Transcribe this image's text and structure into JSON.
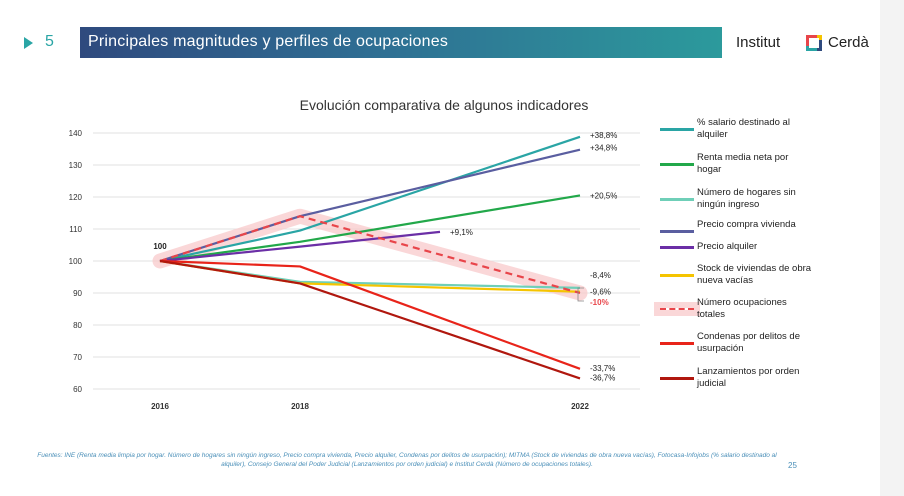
{
  "header": {
    "slide_number": "5",
    "title": "Principales magnitudes y perfiles de ocupaciones",
    "logo_text_left": "Institut",
    "logo_text_right": "Cerdà",
    "colors": {
      "band_start": "#2f4a7e",
      "band_end": "#2c9a9c",
      "accent": "#2aa5a5"
    }
  },
  "chart_data": {
    "type": "line",
    "title": "Evolución comparativa de algunos indicadores",
    "x": [
      2016,
      2018,
      2022
    ],
    "x_tick_labels": [
      "2016",
      "2018",
      "2022"
    ],
    "ylim": [
      60,
      140
    ],
    "y_ticks": [
      60,
      70,
      80,
      90,
      100,
      110,
      120,
      130,
      140
    ],
    "grid": true,
    "legend_position": "right",
    "start_label": "100",
    "series": [
      {
        "name": "% salario destinado al alquiler",
        "color": "#2aa5a5",
        "points": [
          [
            2016,
            100
          ],
          [
            2018,
            109.5
          ],
          [
            2022,
            138.8
          ]
        ],
        "end_label": "+38,8%"
      },
      {
        "name": "Renta media neta por hogar",
        "color": "#22a84a",
        "points": [
          [
            2016,
            100
          ],
          [
            2018,
            106
          ],
          [
            2022,
            120.5
          ]
        ],
        "end_label": "+20,5%"
      },
      {
        "name": "Número de hogares sin ningún ingreso",
        "color": "#6fcfb8",
        "points": [
          [
            2016,
            100
          ],
          [
            2018,
            93.5
          ],
          [
            2022,
            91.6
          ]
        ],
        "end_label": "-8,4%"
      },
      {
        "name": "Precio compra vivienda",
        "color": "#5a5ea0",
        "points": [
          [
            2016,
            100
          ],
          [
            2018,
            114
          ],
          [
            2022,
            134.8
          ]
        ],
        "end_label": "+34,8%"
      },
      {
        "name": "Precio alquiler",
        "color": "#6b2fa6",
        "points": [
          [
            2016,
            100
          ],
          [
            2018,
            104.5
          ],
          [
            2020,
            109.1
          ]
        ],
        "end_label": "+9,1%"
      },
      {
        "name": "Stock de viviendas de obra nueva vacías",
        "color": "#f5c400",
        "points": [
          [
            2016,
            100
          ],
          [
            2018,
            93
          ],
          [
            2022,
            90.4
          ]
        ],
        "end_label": "-9,6%"
      },
      {
        "name": "Número ocupaciones totales",
        "color": "#e8454a",
        "dashed": true,
        "highlight": true,
        "points": [
          [
            2016,
            100
          ],
          [
            2018,
            114
          ],
          [
            2022,
            90
          ]
        ],
        "end_label": "-10%"
      },
      {
        "name": "Condenas por delitos de usurpación",
        "color": "#e8241a",
        "points": [
          [
            2016,
            100
          ],
          [
            2018,
            98.3
          ],
          [
            2022,
            66.3
          ]
        ],
        "end_label": "-33,7%"
      },
      {
        "name": "Lanzamientos por orden judicial",
        "color": "#b0170e",
        "points": [
          [
            2016,
            100
          ],
          [
            2018,
            93
          ],
          [
            2022,
            63.3
          ]
        ],
        "end_label": "-36,7%"
      }
    ]
  },
  "footer": {
    "sources": "Fuentes: INE (Renta media limpia por hogar. Número de hogares sin ningún ingreso, Precio compra vivienda, Precio alquiler, Condenas por delitos de usurpación); MITMA (Stock de viviendas de obra nueva vacías), Fotocasa-Infojobs (% salario destinado al alquiler), Consejo General del Poder Judicial (Lanzamientos por orden judicial) e Institut Cerdà (Número de ocupaciones totales).",
    "page_number": "25"
  }
}
